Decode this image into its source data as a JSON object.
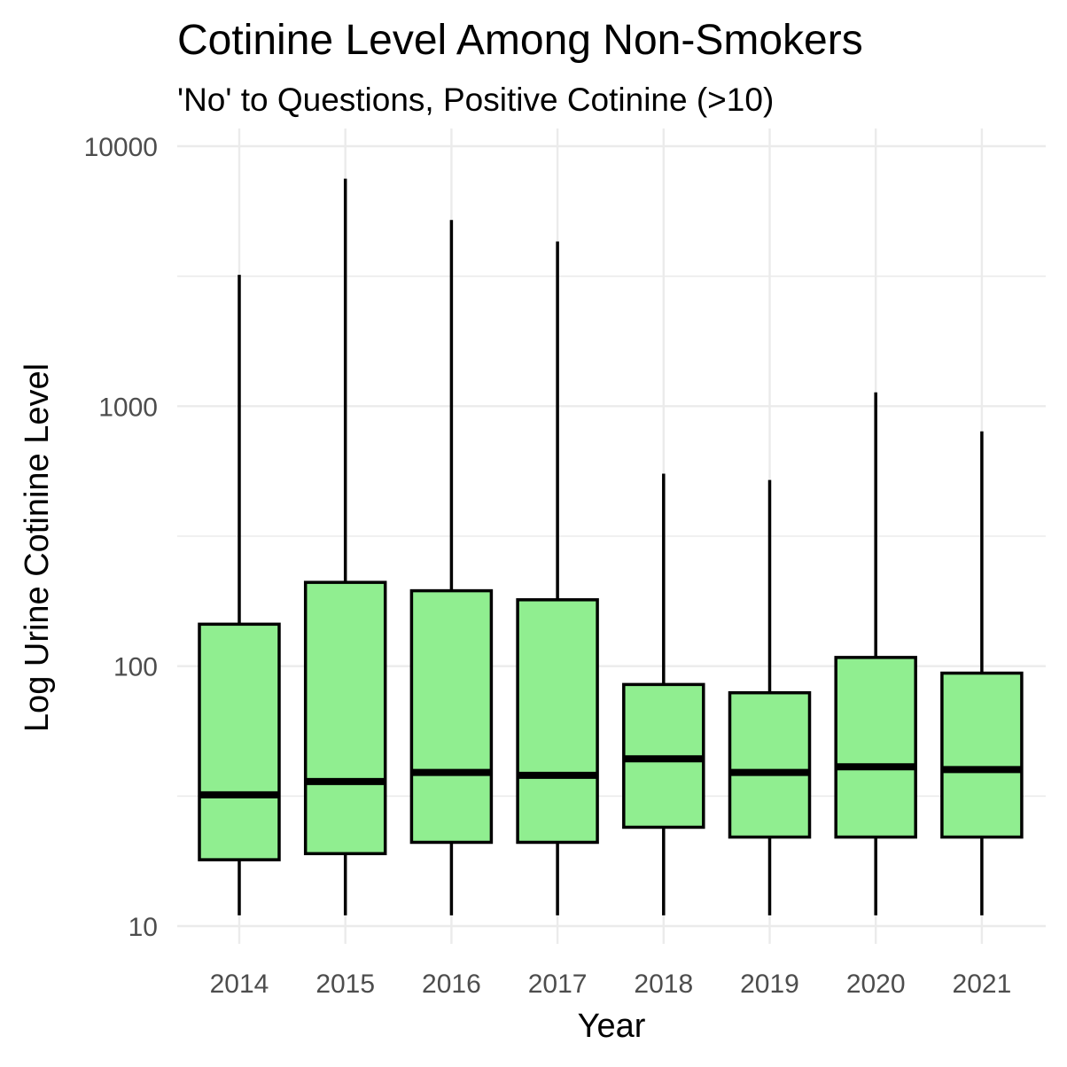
{
  "chart_data": {
    "type": "box",
    "title": "Cotinine Level Among Non-Smokers",
    "subtitle": "'No' to Questions, Positive Cotinine (>10)",
    "xlabel": "Year",
    "ylabel": "Log Urine Cotinine Level",
    "y_scale": "log10",
    "ylim": [
      10,
      10000
    ],
    "y_ticks": [
      10,
      100,
      1000,
      10000
    ],
    "y_tick_labels": [
      "10",
      "100",
      "1000",
      "10000"
    ],
    "categories": [
      "2014",
      "2015",
      "2016",
      "2017",
      "2018",
      "2019",
      "2020",
      "2021"
    ],
    "boxes": [
      {
        "category": "2014",
        "min": 11,
        "q1": 18,
        "median": 32,
        "q3": 145,
        "max": 3200
      },
      {
        "category": "2015",
        "min": 11,
        "q1": 19,
        "median": 36,
        "q3": 210,
        "max": 7500
      },
      {
        "category": "2016",
        "min": 11,
        "q1": 21,
        "median": 39,
        "q3": 195,
        "max": 5200
      },
      {
        "category": "2017",
        "min": 11,
        "q1": 21,
        "median": 38,
        "q3": 180,
        "max": 4300
      },
      {
        "category": "2018",
        "min": 11,
        "q1": 24,
        "median": 44,
        "q3": 85,
        "max": 550
      },
      {
        "category": "2019",
        "min": 11,
        "q1": 22,
        "median": 39,
        "q3": 79,
        "max": 520
      },
      {
        "category": "2020",
        "min": 11,
        "q1": 22,
        "median": 41,
        "q3": 108,
        "max": 1130
      },
      {
        "category": "2021",
        "min": 11,
        "q1": 22,
        "median": 40,
        "q3": 94,
        "max": 800
      }
    ],
    "box_fill": "#90ee90",
    "box_stroke": "#000000",
    "grid": true,
    "grid_color": "#ebebeb",
    "legend": "none"
  }
}
